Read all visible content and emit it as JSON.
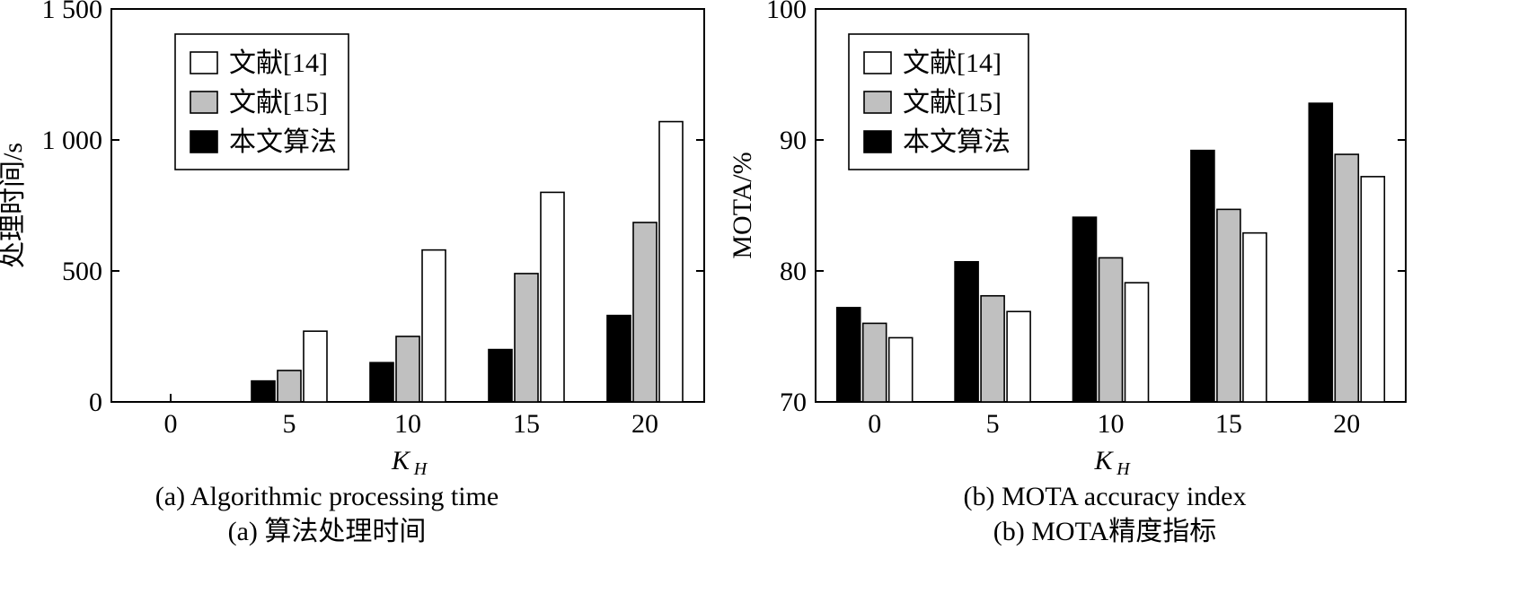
{
  "chart_data": [
    {
      "type": "bar",
      "caption_en": "(a) Algorithmic processing time",
      "caption_zh": "(a) 算法处理时间",
      "xlabel": "K",
      "xlabel_sub": "H",
      "ylabel": "处理时间/s",
      "categories": [
        "0",
        "5",
        "10",
        "15",
        "20"
      ],
      "ylim": [
        0,
        1500
      ],
      "yticks": [
        0,
        500,
        1000,
        1500
      ],
      "ytick_labels": [
        "0",
        "500",
        "1 000",
        "1 500"
      ],
      "legend_position": "top-left",
      "series": [
        {
          "name": "本文算法",
          "color": "#000000",
          "values": [
            0,
            80,
            150,
            200,
            330
          ]
        },
        {
          "name": "文献[15]",
          "color": "#c0c0c0",
          "values": [
            0,
            120,
            250,
            490,
            685
          ]
        },
        {
          "name": "文献[14]",
          "color": "#ffffff",
          "values": [
            0,
            270,
            580,
            800,
            1070
          ]
        }
      ],
      "legend_order": [
        2,
        1,
        0
      ]
    },
    {
      "type": "bar",
      "caption_en": "(b) MOTA accuracy index",
      "caption_zh": "(b) MOTA精度指标",
      "xlabel": "K",
      "xlabel_sub": "H",
      "ylabel": "MOTA/%",
      "categories": [
        "0",
        "5",
        "10",
        "15",
        "20"
      ],
      "ylim": [
        70,
        100
      ],
      "yticks": [
        70,
        80,
        90,
        100
      ],
      "ytick_labels": [
        "70",
        "80",
        "90",
        "100"
      ],
      "legend_position": "top-left",
      "series": [
        {
          "name": "本文算法",
          "color": "#000000",
          "values": [
            77.2,
            80.7,
            84.1,
            89.2,
            92.8
          ]
        },
        {
          "name": "文献[15]",
          "color": "#c0c0c0",
          "values": [
            76.0,
            78.1,
            81.0,
            84.7,
            88.9
          ]
        },
        {
          "name": "文献[14]",
          "color": "#ffffff",
          "values": [
            74.9,
            76.9,
            79.1,
            82.9,
            87.2
          ]
        }
      ],
      "legend_order": [
        2,
        1,
        0
      ]
    }
  ]
}
